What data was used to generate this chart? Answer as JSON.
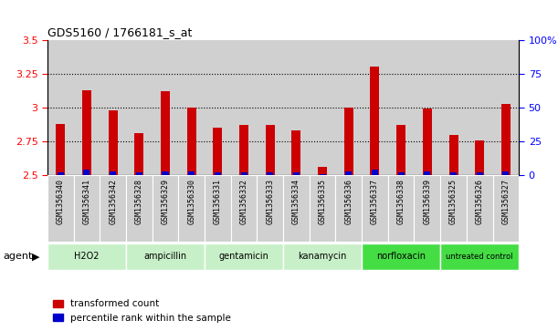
{
  "title": "GDS5160 / 1766181_s_at",
  "samples": [
    "GSM1356340",
    "GSM1356341",
    "GSM1356342",
    "GSM1356328",
    "GSM1356329",
    "GSM1356330",
    "GSM1356331",
    "GSM1356332",
    "GSM1356333",
    "GSM1356334",
    "GSM1356335",
    "GSM1356336",
    "GSM1356337",
    "GSM1356338",
    "GSM1356339",
    "GSM1356325",
    "GSM1356326",
    "GSM1356327"
  ],
  "transformed_count": [
    2.88,
    3.13,
    2.98,
    2.81,
    3.12,
    3.0,
    2.85,
    2.87,
    2.87,
    2.83,
    2.56,
    3.0,
    3.3,
    2.87,
    2.99,
    2.8,
    2.76,
    3.03
  ],
  "percentile_rank": [
    2,
    4,
    3,
    2,
    3,
    3,
    2,
    2,
    2,
    2,
    1,
    3,
    4,
    2,
    3,
    2,
    2,
    3
  ],
  "agents": [
    {
      "name": "H2O2",
      "start": 0,
      "end": 3,
      "color": "#c8f0c8"
    },
    {
      "name": "ampicillin",
      "start": 3,
      "end": 6,
      "color": "#c8f0c8"
    },
    {
      "name": "gentamicin",
      "start": 6,
      "end": 9,
      "color": "#c8f0c8"
    },
    {
      "name": "kanamycin",
      "start": 9,
      "end": 12,
      "color": "#c8f0c8"
    },
    {
      "name": "norfloxacin",
      "start": 12,
      "end": 15,
      "color": "#44dd44"
    },
    {
      "name": "untreated control",
      "start": 15,
      "end": 18,
      "color": "#44dd44"
    }
  ],
  "ylim_left": [
    2.5,
    3.5
  ],
  "ylim_right": [
    0,
    100
  ],
  "yticks_left": [
    2.5,
    2.75,
    3.0,
    3.25,
    3.5
  ],
  "yticks_right": [
    0,
    25,
    50,
    75,
    100
  ],
  "ytick_labels_right": [
    "0",
    "25",
    "50",
    "75",
    "100%"
  ],
  "bar_color_red": "#cc0000",
  "bar_color_blue": "#0000cc",
  "background_color": "#ffffff",
  "bar_bg_color": "#d0d0d0",
  "legend_red": "transformed count",
  "legend_blue": "percentile rank within the sample"
}
